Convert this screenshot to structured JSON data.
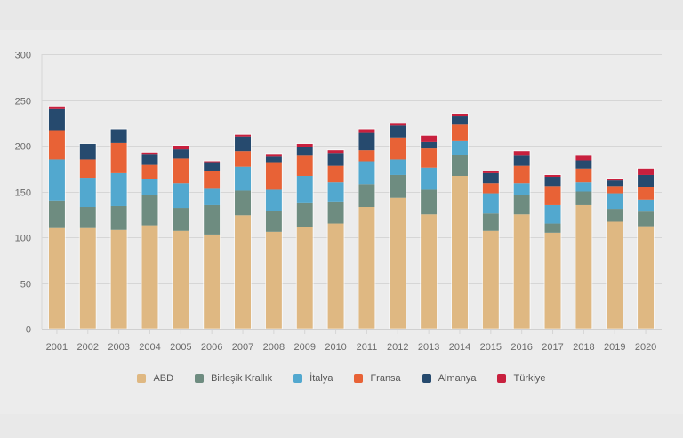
{
  "chart_data": {
    "type": "bar",
    "stacked": true,
    "title": "",
    "xlabel": "",
    "ylabel": "",
    "ylim": [
      0,
      300
    ],
    "yticks": [
      0,
      50,
      100,
      150,
      200,
      250,
      300
    ],
    "grid": true,
    "legend_position": "bottom-center",
    "categories": [
      "2001",
      "2002",
      "2003",
      "2004",
      "2005",
      "2006",
      "2007",
      "2008",
      "2009",
      "2010",
      "2011",
      "2012",
      "2013",
      "2014",
      "2015",
      "2016",
      "2017",
      "2018",
      "2019",
      "2020"
    ],
    "series": [
      {
        "name": "ABD",
        "color": "#dfb882",
        "values": [
          110,
          110,
          108,
          113,
          107,
          103,
          124,
          106,
          111,
          115,
          133,
          143,
          125,
          167,
          107,
          125,
          105,
          135,
          117,
          112
        ]
      },
      {
        "name": "Birleşik Krallık",
        "color": "#6e8c80",
        "values": [
          30,
          23,
          26,
          33,
          25,
          32,
          27,
          23,
          27,
          24,
          25,
          25,
          27,
          23,
          19,
          21,
          10,
          15,
          14,
          16
        ]
      },
      {
        "name": "İtalya",
        "color": "#52a8cf",
        "values": [
          45,
          32,
          36,
          18,
          27,
          18,
          26,
          23,
          29,
          21,
          25,
          17,
          24,
          15,
          22,
          13,
          20,
          10,
          17,
          13
        ]
      },
      {
        "name": "Fransa",
        "color": "#e86236",
        "values": [
          32,
          20,
          33,
          15,
          27,
          19,
          17,
          30,
          22,
          18,
          12,
          24,
          21,
          18,
          11,
          19,
          21,
          15,
          8,
          14
        ]
      },
      {
        "name": "Almanya",
        "color": "#264a6e",
        "values": [
          23,
          17,
          15,
          12,
          10,
          10,
          16,
          6,
          10,
          14,
          19,
          13,
          7,
          9,
          11,
          11,
          10,
          9,
          6,
          13
        ]
      },
      {
        "name": "Türkiye",
        "color": "#c8203e",
        "values": [
          3,
          0,
          0,
          1.5,
          4,
          1,
          2,
          3,
          3,
          3,
          4,
          2,
          7,
          3,
          2,
          5,
          2,
          5,
          2,
          7
        ]
      }
    ]
  }
}
